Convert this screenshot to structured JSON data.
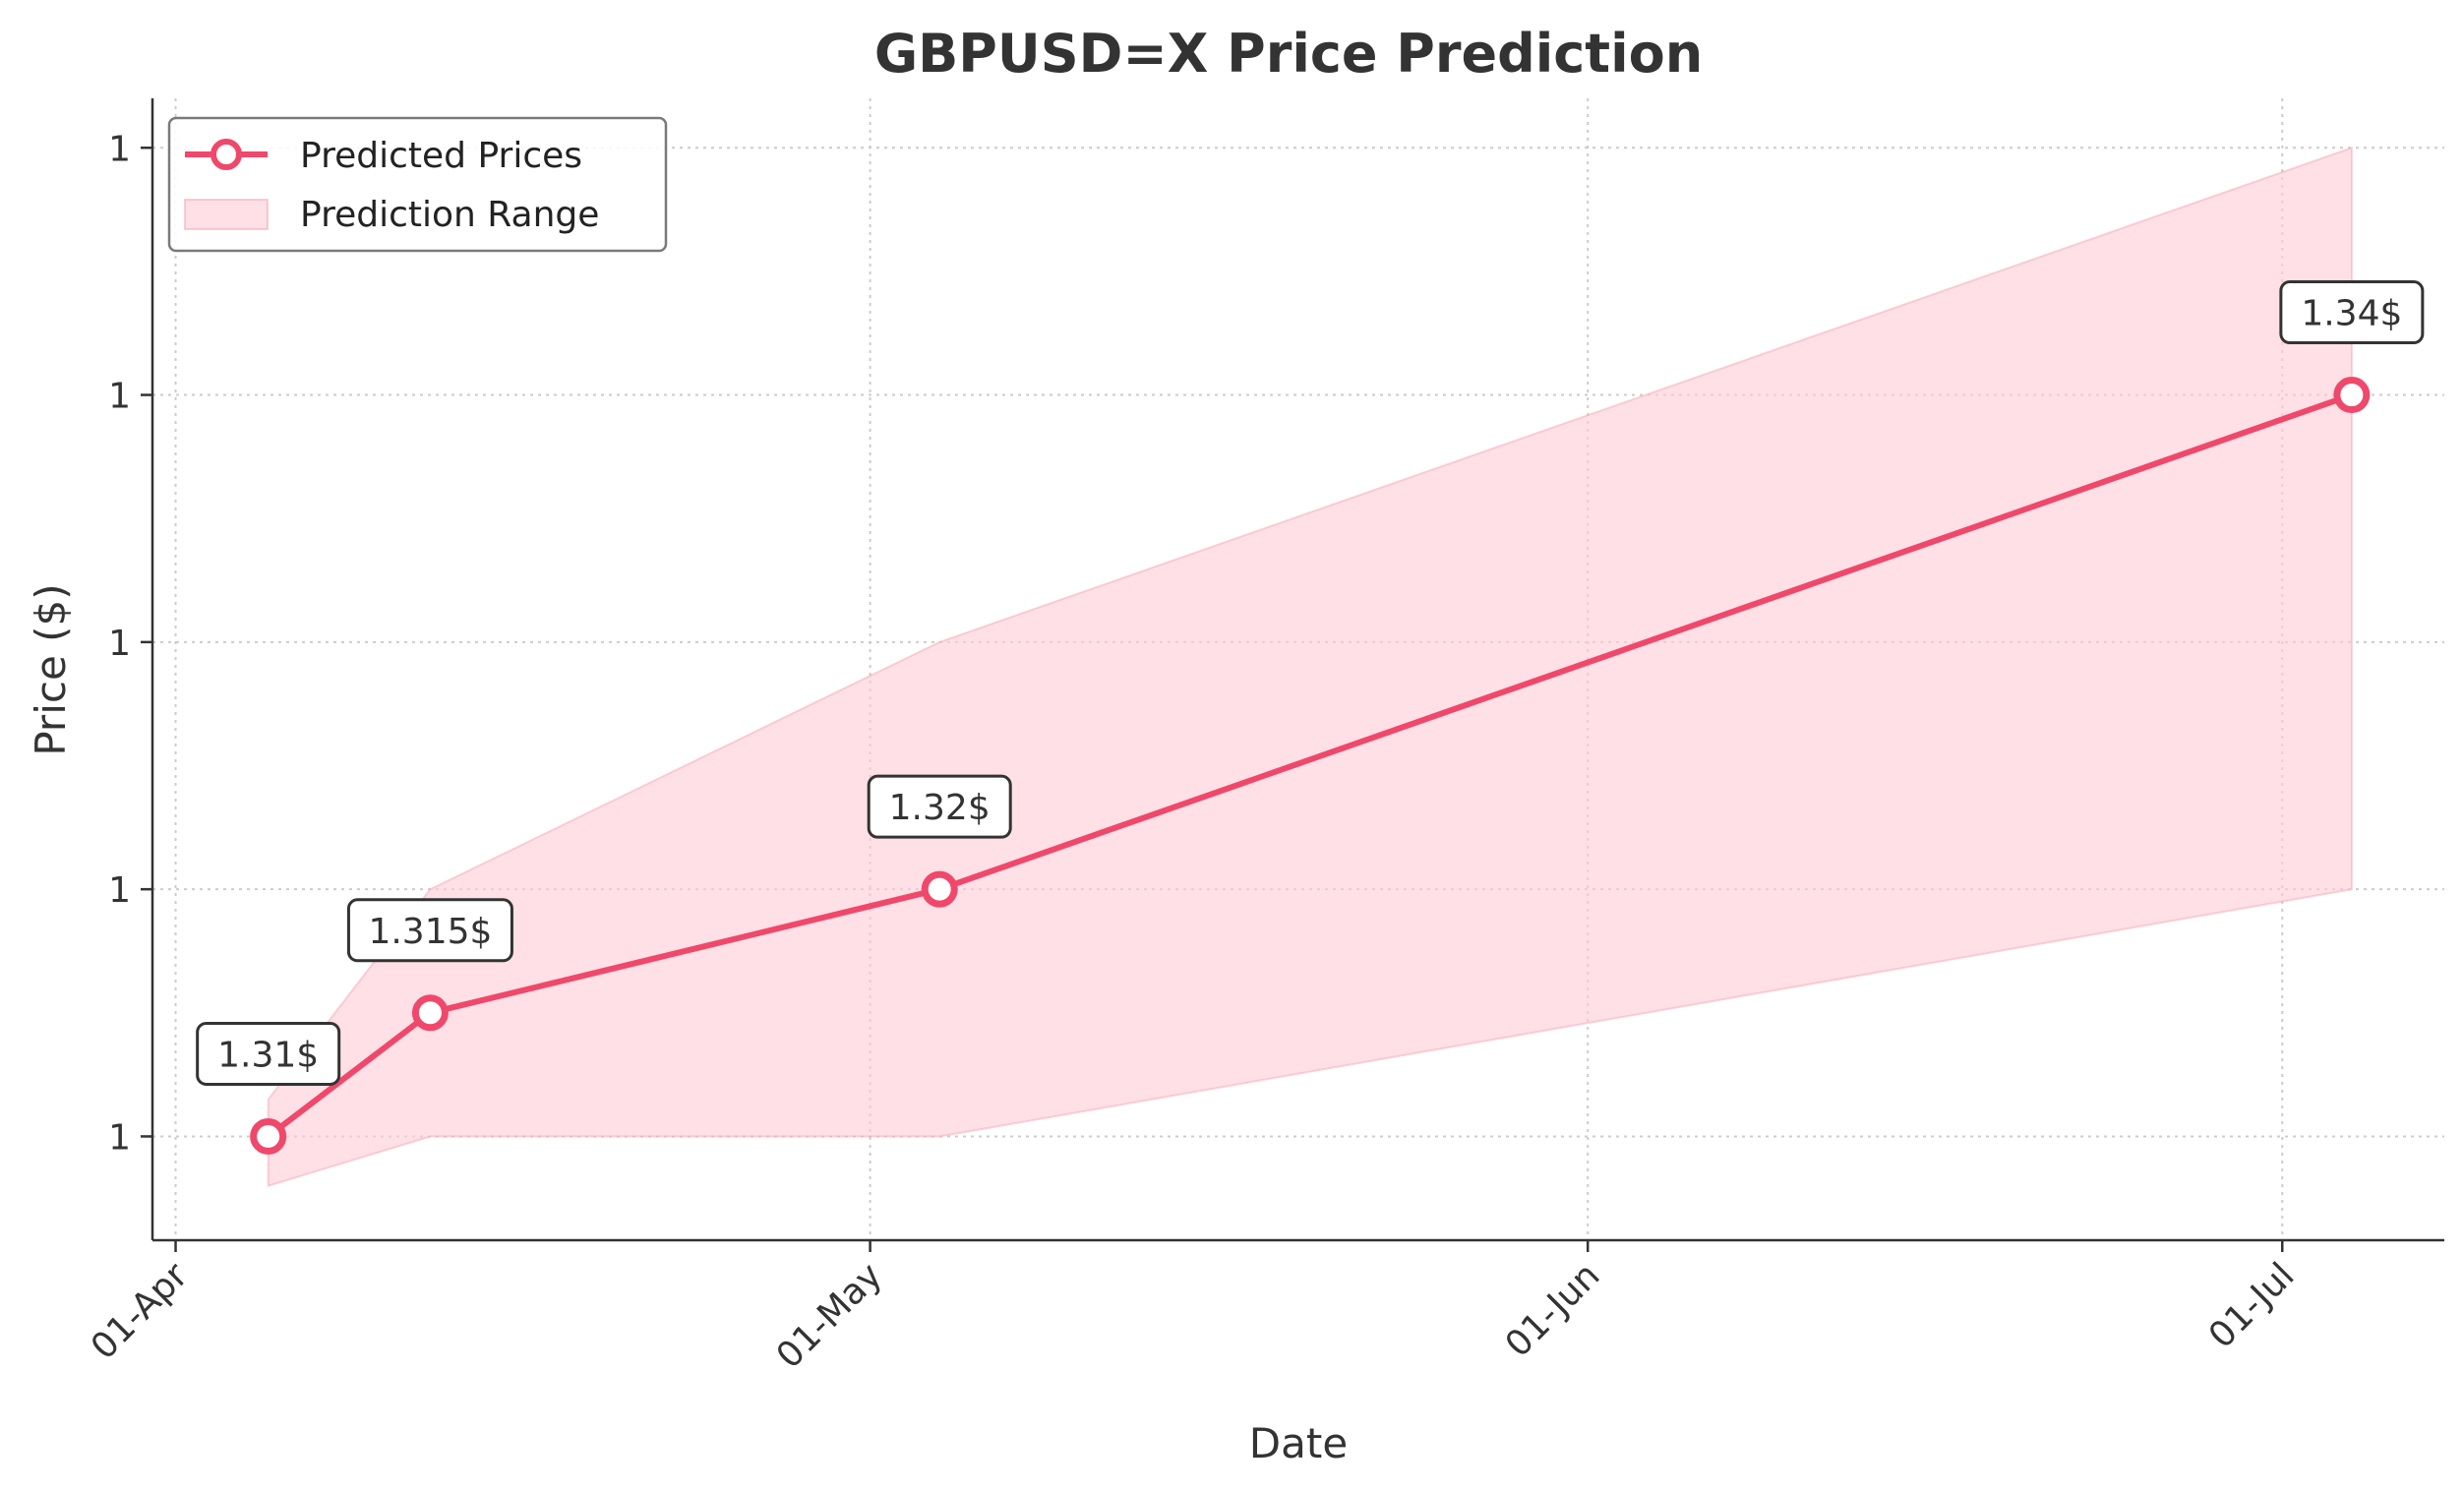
{
  "chart_data": {
    "type": "line",
    "title": "GBPUSD=X Price Prediction",
    "xlabel": "Date",
    "ylabel": "Price ($)",
    "x_ticks": [
      {
        "date": "2025-04-01",
        "label": "01-Apr"
      },
      {
        "date": "2025-05-01",
        "label": "01-May"
      },
      {
        "date": "2025-06-01",
        "label": "01-Jun"
      },
      {
        "date": "2025-07-01",
        "label": "01-Jul"
      }
    ],
    "y_ticks": [
      {
        "value": 1.31,
        "label": "1"
      },
      {
        "value": 1.32,
        "label": "1"
      },
      {
        "value": 1.33,
        "label": "1"
      },
      {
        "value": 1.34,
        "label": "1"
      },
      {
        "value": 1.35,
        "label": "1"
      }
    ],
    "xlim": [
      "2025-03-31",
      "2025-07-08"
    ],
    "ylim": [
      1.3058,
      1.352
    ],
    "grid": true,
    "legend_position": "top-left",
    "series": [
      {
        "name": "Predicted Prices",
        "color": "#f0486a",
        "points": [
          {
            "date": "2025-04-05",
            "value": 1.31,
            "label": "1.31$"
          },
          {
            "date": "2025-04-12",
            "value": 1.315,
            "label": "1.315$"
          },
          {
            "date": "2025-05-04",
            "value": 1.32,
            "label": "1.32$"
          },
          {
            "date": "2025-07-04",
            "value": 1.34,
            "label": "1.34$"
          }
        ]
      }
    ],
    "range": {
      "name": "Prediction Range",
      "color": "#ffccd5",
      "points": [
        {
          "date": "2025-04-05",
          "low": 1.308,
          "high": 1.3115
        },
        {
          "date": "2025-04-12",
          "low": 1.31,
          "high": 1.32
        },
        {
          "date": "2025-05-04",
          "low": 1.31,
          "high": 1.33
        },
        {
          "date": "2025-07-04",
          "low": 1.32,
          "high": 1.35
        }
      ]
    }
  }
}
